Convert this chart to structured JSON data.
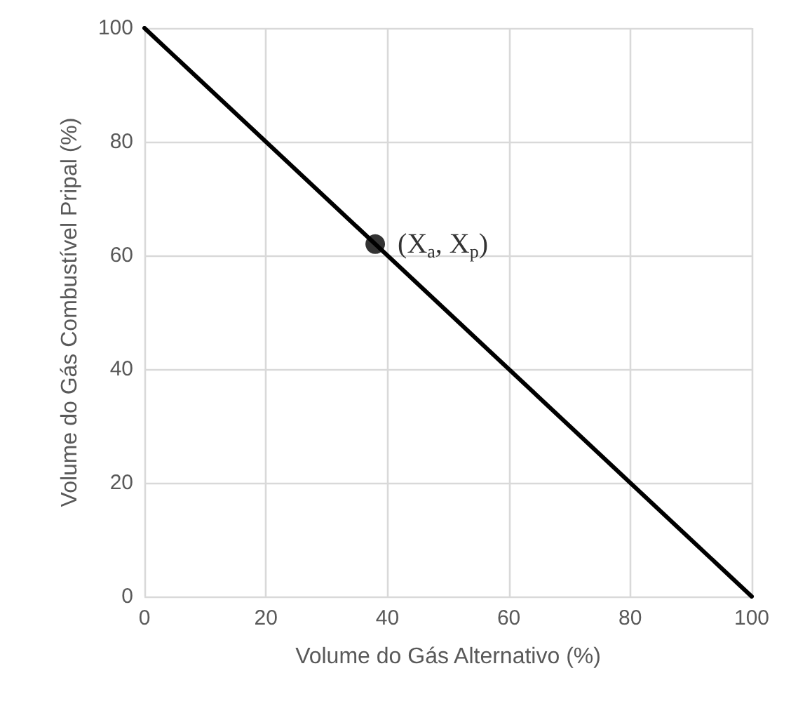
{
  "chart_data": {
    "type": "line",
    "xlabel": "Volume do Gás Alternativo (%)",
    "ylabel": "Volume do Gás Combustível Pripal (%)",
    "xlim": [
      0,
      100
    ],
    "ylim": [
      0,
      100
    ],
    "xticks": [
      0,
      20,
      40,
      60,
      80,
      100
    ],
    "yticks": [
      0,
      20,
      40,
      60,
      80,
      100
    ],
    "grid": true,
    "line_style": "solid",
    "series": [
      {
        "x": [
          0,
          100
        ],
        "values": [
          100,
          0
        ],
        "color": "#000000",
        "marker": "none"
      },
      {
        "type": "scatter",
        "x": [
          38
        ],
        "values": [
          62
        ],
        "color": "#000000",
        "marker": "circle"
      }
    ],
    "annotations": [
      {
        "text": "(X$_{a}$, X$_{p}$)",
        "x": 38,
        "y": 62
      }
    ]
  }
}
